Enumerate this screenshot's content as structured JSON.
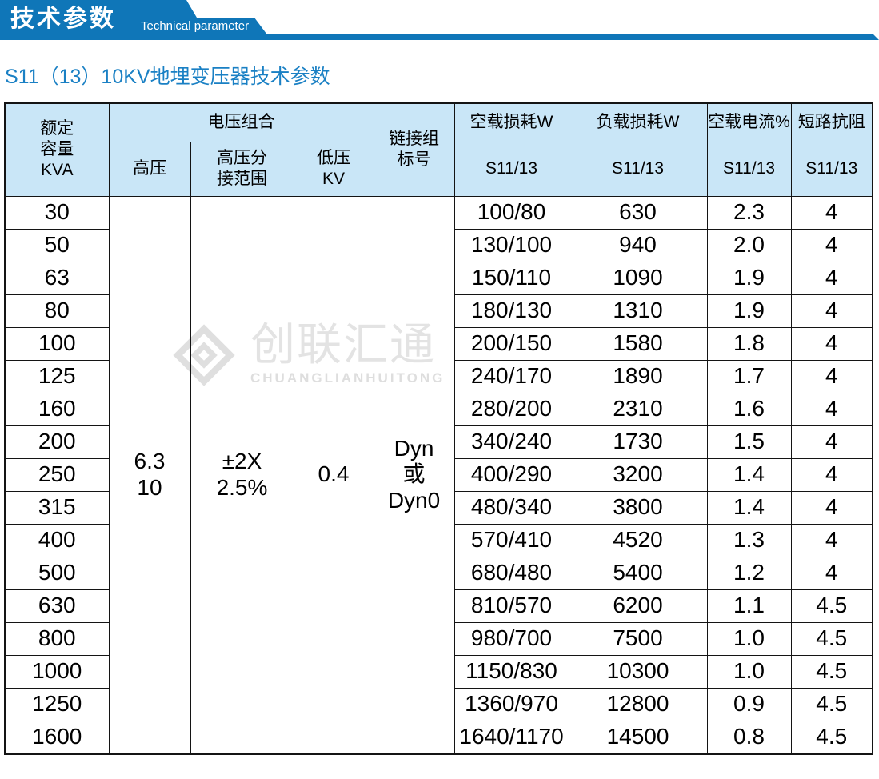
{
  "banner": {
    "title_cn": "技术参数",
    "title_en": "Technical parameter",
    "color": "#0f76b8"
  },
  "page_title": "S11（13）10KV地埋变压器技术参数",
  "watermark": {
    "cn": "创联汇通",
    "en": "CHUANGLIANHUITONG",
    "color": "#e0e0e0"
  },
  "table": {
    "headers": {
      "capacity": "额定\n容量\nKVA",
      "voltage_group": "电压组合",
      "hv": "高压",
      "hv_tap": "高压分\n接范围",
      "lv": "低压\nKV",
      "vector_group": "链接组\n标号",
      "no_load_loss": "空载损耗W",
      "load_loss": "负载损耗W",
      "no_load_current": "空载电流%",
      "impedance": "短路抗阻",
      "sub_no_load_loss": "S11/13",
      "sub_load_loss": "S11/13",
      "sub_no_load_current": "S11/13",
      "sub_impedance": "S11/13"
    },
    "merged": {
      "hv": "6.3\n10",
      "hv_tap": "±2X\n2.5%",
      "lv": "0.4",
      "vector": "Dyn\n或\nDyn0"
    },
    "rows": [
      {
        "kva": "30",
        "no_load_loss": "100/80",
        "load_loss": "630",
        "no_load_current": "2.3",
        "impedance": "4"
      },
      {
        "kva": "50",
        "no_load_loss": "130/100",
        "load_loss": "940",
        "no_load_current": "2.0",
        "impedance": "4"
      },
      {
        "kva": "63",
        "no_load_loss": "150/110",
        "load_loss": "1090",
        "no_load_current": "1.9",
        "impedance": "4"
      },
      {
        "kva": "80",
        "no_load_loss": "180/130",
        "load_loss": "1310",
        "no_load_current": "1.9",
        "impedance": "4"
      },
      {
        "kva": "100",
        "no_load_loss": "200/150",
        "load_loss": "1580",
        "no_load_current": "1.8",
        "impedance": "4"
      },
      {
        "kva": "125",
        "no_load_loss": "240/170",
        "load_loss": "1890",
        "no_load_current": "1.7",
        "impedance": "4"
      },
      {
        "kva": "160",
        "no_load_loss": "280/200",
        "load_loss": "2310",
        "no_load_current": "1.6",
        "impedance": "4"
      },
      {
        "kva": "200",
        "no_load_loss": "340/240",
        "load_loss": "1730",
        "no_load_current": "1.5",
        "impedance": "4"
      },
      {
        "kva": "250",
        "no_load_loss": "400/290",
        "load_loss": "3200",
        "no_load_current": "1.4",
        "impedance": "4"
      },
      {
        "kva": "315",
        "no_load_loss": "480/340",
        "load_loss": "3800",
        "no_load_current": "1.4",
        "impedance": "4"
      },
      {
        "kva": "400",
        "no_load_loss": "570/410",
        "load_loss": "4520",
        "no_load_current": "1.3",
        "impedance": "4"
      },
      {
        "kva": "500",
        "no_load_loss": "680/480",
        "load_loss": "5400",
        "no_load_current": "1.2",
        "impedance": "4"
      },
      {
        "kva": "630",
        "no_load_loss": "810/570",
        "load_loss": "6200",
        "no_load_current": "1.1",
        "impedance": "4.5"
      },
      {
        "kva": "800",
        "no_load_loss": "980/700",
        "load_loss": "7500",
        "no_load_current": "1.0",
        "impedance": "4.5"
      },
      {
        "kva": "1000",
        "no_load_loss": "1150/830",
        "load_loss": "10300",
        "no_load_current": "1.0",
        "impedance": "4.5"
      },
      {
        "kva": "1250",
        "no_load_loss": "1360/970",
        "load_loss": "12800",
        "no_load_current": "0.9",
        "impedance": "4.5"
      },
      {
        "kva": "1600",
        "no_load_loss": "1640/1170",
        "load_loss": "14500",
        "no_load_current": "0.8",
        "impedance": "4.5"
      }
    ]
  }
}
